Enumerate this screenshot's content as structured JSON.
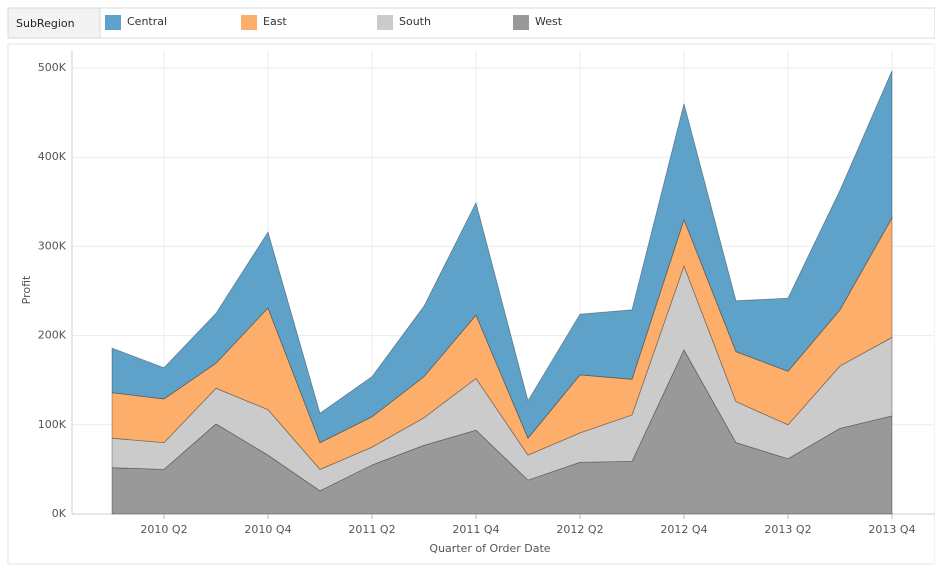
{
  "chart_data": {
    "type": "stacked_area",
    "legend_title": "SubRegion",
    "x_label": "Quarter of Order Date",
    "y_label": "Profit",
    "categories": [
      null,
      "2010 Q2",
      null,
      "2010 Q4",
      null,
      "2011 Q2",
      null,
      "2011 Q4",
      null,
      "2012 Q2",
      null,
      "2012 Q4",
      null,
      "2013 Q2",
      null,
      "2013 Q4"
    ],
    "series": [
      {
        "name": "West",
        "color": "#999999",
        "values": [
          52000,
          50000,
          101000,
          66000,
          26000,
          55000,
          77000,
          94000,
          38000,
          58000,
          59000,
          184000,
          80000,
          62000,
          96000,
          110000
        ]
      },
      {
        "name": "South",
        "color": "#cbcbcb",
        "values": [
          33000,
          30000,
          40000,
          51000,
          24000,
          20000,
          31000,
          58000,
          28000,
          33000,
          52000,
          94000,
          46000,
          38000,
          70000,
          88000
        ]
      },
      {
        "name": "East",
        "color": "#fdae6b",
        "values": [
          51000,
          49000,
          28000,
          114000,
          30000,
          34000,
          46000,
          71000,
          19000,
          65000,
          40000,
          52000,
          56000,
          60000,
          63000,
          134000
        ]
      },
      {
        "name": "Central",
        "color": "#5fa2c9",
        "values": [
          50000,
          35000,
          56000,
          85000,
          33000,
          45000,
          79000,
          126000,
          42000,
          68000,
          78000,
          130000,
          57000,
          82000,
          134000,
          165000
        ]
      }
    ],
    "legend_order": [
      3,
      2,
      1,
      0
    ],
    "ylim": [
      0,
      500000
    ],
    "yticks": [
      {
        "value": 0,
        "label": "0K"
      },
      {
        "value": 100000,
        "label": "100K"
      },
      {
        "value": 200000,
        "label": "200K"
      },
      {
        "value": 300000,
        "label": "300K"
      },
      {
        "value": 400000,
        "label": "400K"
      },
      {
        "value": 500000,
        "label": "500K"
      }
    ],
    "grid": true
  }
}
